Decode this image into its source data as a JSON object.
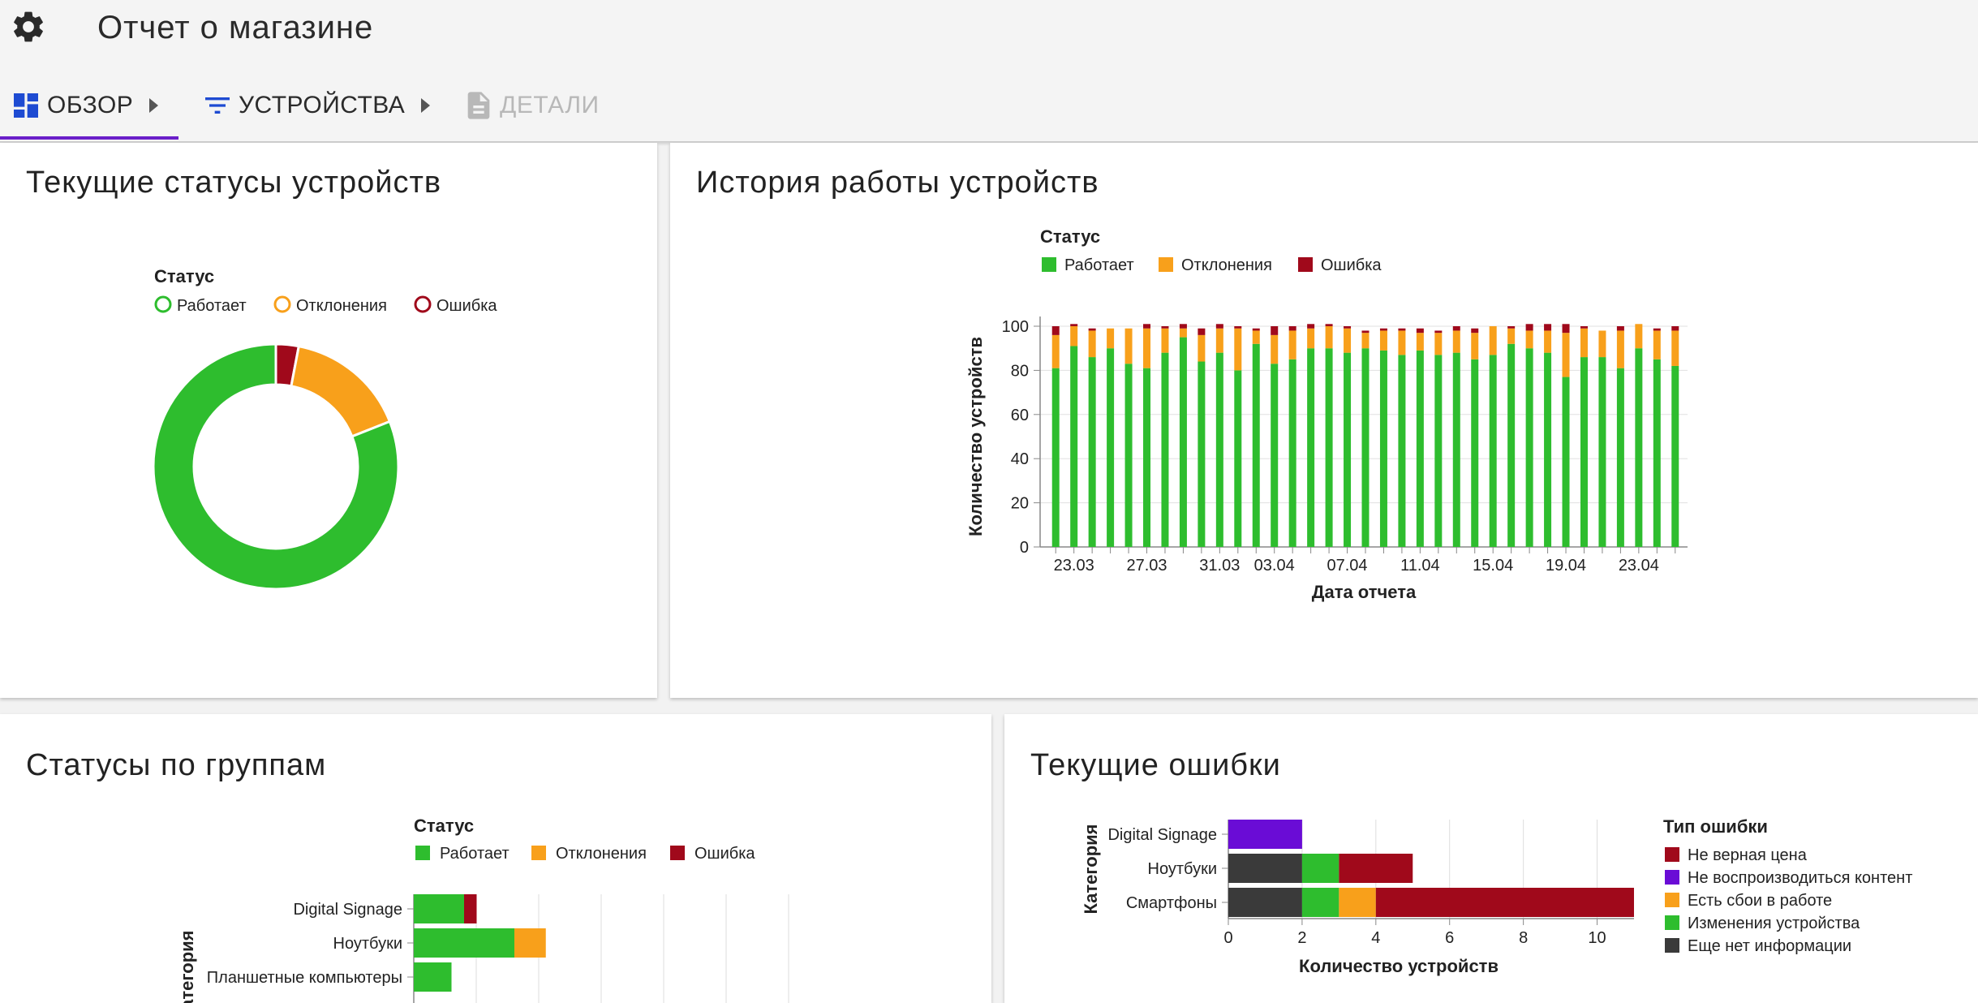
{
  "app": {
    "title": "Отчет о магазине"
  },
  "tabs": [
    {
      "label": "ОБЗОР",
      "icon": "dashboard-icon",
      "active": true
    },
    {
      "label": "УСТРОЙСТВА",
      "icon": "filter-icon",
      "active": false
    },
    {
      "label": "ДЕТАЛИ",
      "icon": "document-icon",
      "active": false,
      "disabled": true
    }
  ],
  "colors": {
    "working": "#2ebd2e",
    "deviation": "#f8a01b",
    "error": "#a0091b",
    "no_content": "#6a0cd6",
    "no_info": "#3a3a3a",
    "accent": "#6a1ec9",
    "tab_icon": "#1e4bd2"
  },
  "cards": {
    "current_status": {
      "title": "Текущие статусы устройств"
    },
    "history": {
      "title": "История работы устройств"
    },
    "groups": {
      "title": "Статусы по группам"
    },
    "errors": {
      "title": "Текущие ошибки"
    }
  },
  "chart_data": [
    {
      "type": "pie",
      "variant": "donut",
      "legend_title": "Статус",
      "legend_placement": "top",
      "labels": [
        "Работает",
        "Отклонения",
        "Ошибка"
      ],
      "values": [
        81,
        16,
        3
      ]
    },
    {
      "type": "bar",
      "stacked": true,
      "legend_title": "Статус",
      "legend_placement": "top",
      "xlabel": "Дата отчета",
      "ylabel": "Количество устройств",
      "ylim": [
        0,
        100
      ],
      "yticks": [
        0,
        20,
        40,
        60,
        80,
        100
      ],
      "xtick_labels": [
        "23.03",
        "27.03",
        "31.03",
        "03.04",
        "07.04",
        "11.04",
        "15.04",
        "19.04",
        "23.04"
      ],
      "series": [
        {
          "name": "Работает",
          "values": [
            81,
            91,
            86,
            90,
            83,
            81,
            88,
            95,
            84,
            88,
            80,
            92,
            83,
            85,
            90,
            90,
            88,
            90,
            89,
            87,
            89,
            87,
            88,
            85,
            87,
            92,
            90,
            88,
            77,
            86,
            86,
            81,
            90,
            85,
            82
          ]
        },
        {
          "name": "Отклонения",
          "values": [
            15,
            9,
            12,
            9,
            16,
            18,
            11,
            4,
            12,
            11,
            19,
            6,
            13,
            13,
            9,
            10,
            11,
            7,
            9,
            11,
            8,
            10,
            10,
            12,
            13,
            7,
            8,
            10,
            20,
            13,
            12,
            17,
            11,
            13,
            16
          ]
        },
        {
          "name": "Ошибка",
          "values": [
            4,
            1,
            1,
            0,
            0,
            2,
            1,
            2,
            3,
            2,
            1,
            1,
            4,
            2,
            2,
            1,
            1,
            1,
            1,
            1,
            2,
            1,
            2,
            2,
            0,
            1,
            3,
            3,
            4,
            1,
            0,
            2,
            0,
            1,
            2
          ]
        }
      ]
    },
    {
      "type": "bar",
      "orientation": "horizontal",
      "stacked": true,
      "legend_title": "Статус",
      "legend_placement": "top",
      "ylabel": "Категория",
      "categories": [
        "Digital Signage",
        "Ноутбуки",
        "Планшетные компьютеры"
      ],
      "series": [
        {
          "name": "Работает",
          "values": [
            4,
            8,
            3
          ]
        },
        {
          "name": "Отклонения",
          "values": [
            0,
            2.5,
            0
          ]
        },
        {
          "name": "Ошибка",
          "values": [
            1,
            0,
            0
          ]
        }
      ]
    },
    {
      "type": "bar",
      "orientation": "horizontal",
      "stacked": true,
      "legend_title": "Тип ошибки",
      "legend_placement": "right",
      "xlabel": "Количество устройств",
      "ylabel": "Категория",
      "xlim": [
        0,
        11
      ],
      "xticks": [
        0,
        2,
        4,
        6,
        8,
        10
      ],
      "categories": [
        "Digital Signage",
        "Ноутбуки",
        "Смартфоны"
      ],
      "series": [
        {
          "name": "Еще нет информации",
          "values": [
            0,
            2,
            2
          ]
        },
        {
          "name": "Не воспроизводиться контент",
          "values": [
            2,
            0,
            0
          ]
        },
        {
          "name": "Изменения устройства",
          "values": [
            0,
            1,
            1
          ]
        },
        {
          "name": "Есть сбои в работе",
          "values": [
            0,
            0,
            1
          ]
        },
        {
          "name": "Не верная цена",
          "values": [
            0,
            2,
            7
          ]
        }
      ],
      "legend_order": [
        "Не верная цена",
        "Не воспроизводиться контент",
        "Есть сбои в работе",
        "Изменения устройства",
        "Еще нет информации"
      ]
    }
  ]
}
